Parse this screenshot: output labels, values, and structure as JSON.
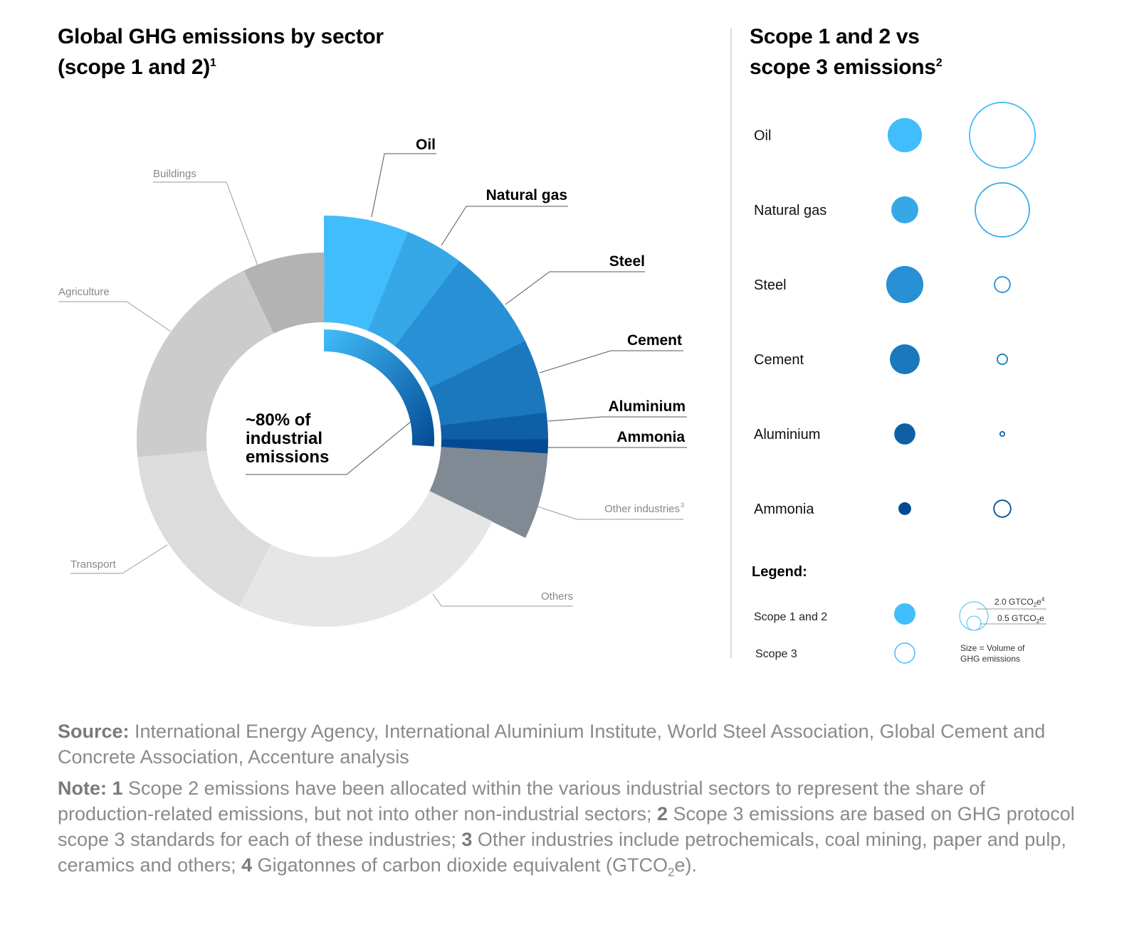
{
  "left_title": {
    "line1": "Global GHG emissions by sector",
    "line2": "(scope 1 and 2)",
    "sup": "1"
  },
  "right_title": {
    "line1": "Scope 1 and 2 vs",
    "line2": "scope 3 emissions",
    "sup": "2"
  },
  "chart_data": [
    {
      "type": "pie",
      "variant": "donut",
      "title": "Global GHG emissions by sector (scope 1 and 2)",
      "center_label": [
        "~80% of",
        "industrial",
        "emissions"
      ],
      "slices": [
        {
          "label": "Oil",
          "value": 6.1,
          "color": "#42BDFB",
          "group": "industrial"
        },
        {
          "label": "Natural gas",
          "value": 4.2,
          "color": "#36A8E8",
          "group": "industrial"
        },
        {
          "label": "Steel",
          "value": 7.4,
          "color": "#2890D4",
          "group": "industrial"
        },
        {
          "label": "Cement",
          "value": 5.3,
          "color": "#1B78BD",
          "group": "industrial"
        },
        {
          "label": "Aluminium",
          "value": 1.9,
          "color": "#0F5FA6",
          "group": "industrial"
        },
        {
          "label": "Ammonia",
          "value": 1.0,
          "color": "#034A92",
          "group": "industrial"
        },
        {
          "label": "Other industries",
          "label_sup": "3",
          "value": 6.2,
          "color": "#808A94",
          "group": "industrial"
        },
        {
          "label": "Others",
          "value": 25.2,
          "color": "#E6E6E6",
          "group": "non-industrial"
        },
        {
          "label": "Transport",
          "value": 16.0,
          "color": "#DCDCDC",
          "group": "non-industrial"
        },
        {
          "label": "Agriculture",
          "value": 19.4,
          "color": "#CCCCCC",
          "group": "non-industrial"
        },
        {
          "label": "Buildings",
          "value": 7.0,
          "color": "#B3B3B3",
          "group": "non-industrial"
        }
      ]
    },
    {
      "type": "scatter",
      "variant": "bubble-matrix",
      "title": "Scope 1 and 2 vs scope 3 emissions",
      "rows": [
        {
          "label": "Oil",
          "scope12": 2.9,
          "scope3": 10.6,
          "color": "#42BDFB"
        },
        {
          "label": "Natural gas",
          "scope12": 1.8,
          "scope3": 7.2,
          "color": "#36A8E8"
        },
        {
          "label": "Steel",
          "scope12": 3.4,
          "scope3": 0.6,
          "color": "#2890D4"
        },
        {
          "label": "Cement",
          "scope12": 2.2,
          "scope3": 0.25,
          "color": "#1B78BD"
        },
        {
          "label": "Aluminium",
          "scope12": 1.1,
          "scope3": 0.05,
          "color": "#0F5FA6"
        },
        {
          "label": "Ammonia",
          "scope12": 0.4,
          "scope3": 0.7,
          "color": "#034A92"
        }
      ],
      "legend": {
        "title": "Legend:",
        "scope12_label": "Scope 1 and 2",
        "scope3_label": "Scope 3",
        "size_ref_large": "2.0 GTCO",
        "size_ref_small": "0.5 GTCO",
        "size_ref_large_value": 2.0,
        "size_ref_small_value": 0.5,
        "sub2": "2",
        "suffix_e": "e",
        "sup4": "4",
        "size_note_line1": "Size = Volume of",
        "size_note_line2": "GHG emissions"
      }
    }
  ],
  "source": {
    "label": "Source:",
    "text": " International Energy Agency, International Aluminium Institute, World Steel Association, Global Cement and Concrete Association, Accenture analysis"
  },
  "note": {
    "label": "Note:",
    "n1": "1",
    "t1": " Scope 2 emissions have been allocated within the various industrial sectors to represent the share of production-related emissions, but not into other non-industrial sectors; ",
    "n2": "2",
    "t2": " Scope 3 emissions are based on GHG protocol scope 3 standards for each of these industries; ",
    "n3": "3",
    "t3": " Other industries include petrochemicals, coal mining, paper and pulp, ceramics and others; ",
    "n4": "4",
    "t4": " Gigatonnes of carbon dioxide equivalent (GTCO",
    "t4sub": "2",
    "t4end": "e)."
  }
}
